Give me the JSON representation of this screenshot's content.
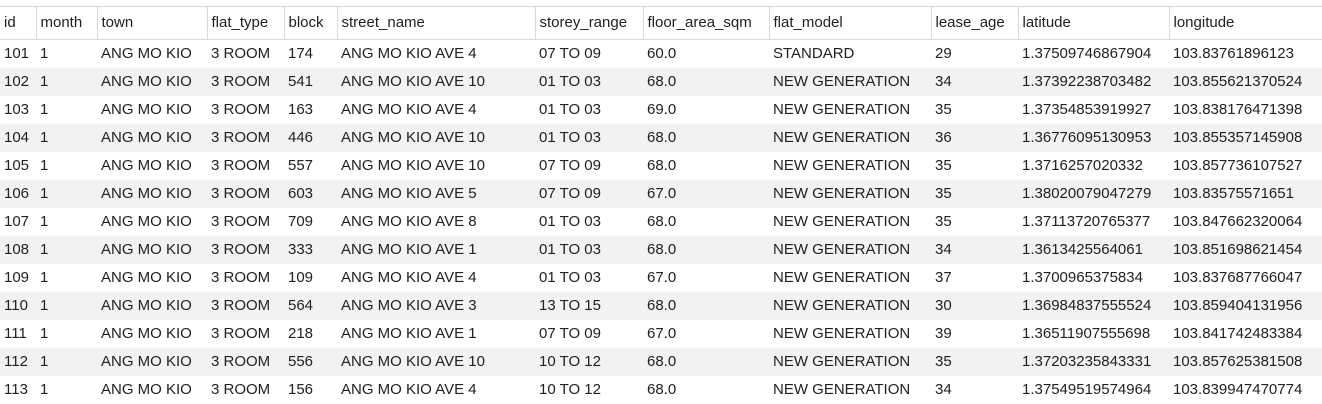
{
  "grid": {
    "columns": [
      "id",
      "month",
      "town",
      "flat_type",
      "block",
      "street_name",
      "storey_range",
      "floor_area_sqm",
      "flat_model",
      "lease_age",
      "latitude",
      "longitude"
    ],
    "rows": [
      [
        "101",
        "1",
        "ANG MO KIO",
        "3 ROOM",
        "174",
        "ANG MO KIO AVE 4",
        "07 TO 09",
        "60.0",
        "STANDARD",
        "29",
        "1.37509746867904",
        "103.83761896123"
      ],
      [
        "102",
        "1",
        "ANG MO KIO",
        "3 ROOM",
        "541",
        "ANG MO KIO AVE 10",
        "01 TO 03",
        "68.0",
        "NEW GENERATION",
        "34",
        "1.37392238703482",
        "103.855621370524"
      ],
      [
        "103",
        "1",
        "ANG MO KIO",
        "3 ROOM",
        "163",
        "ANG MO KIO AVE 4",
        "01 TO 03",
        "69.0",
        "NEW GENERATION",
        "35",
        "1.37354853919927",
        "103.838176471398"
      ],
      [
        "104",
        "1",
        "ANG MO KIO",
        "3 ROOM",
        "446",
        "ANG MO KIO AVE 10",
        "01 TO 03",
        "68.0",
        "NEW GENERATION",
        "36",
        "1.36776095130953",
        "103.855357145908"
      ],
      [
        "105",
        "1",
        "ANG MO KIO",
        "3 ROOM",
        "557",
        "ANG MO KIO AVE 10",
        "07 TO 09",
        "68.0",
        "NEW GENERATION",
        "35",
        "1.3716257020332",
        "103.857736107527"
      ],
      [
        "106",
        "1",
        "ANG MO KIO",
        "3 ROOM",
        "603",
        "ANG MO KIO AVE 5",
        "07 TO 09",
        "67.0",
        "NEW GENERATION",
        "35",
        "1.38020079047279",
        "103.83575571651"
      ],
      [
        "107",
        "1",
        "ANG MO KIO",
        "3 ROOM",
        "709",
        "ANG MO KIO AVE 8",
        "01 TO 03",
        "68.0",
        "NEW GENERATION",
        "35",
        "1.37113720765377",
        "103.847662320064"
      ],
      [
        "108",
        "1",
        "ANG MO KIO",
        "3 ROOM",
        "333",
        "ANG MO KIO AVE 1",
        "01 TO 03",
        "68.0",
        "NEW GENERATION",
        "34",
        "1.3613425564061",
        "103.851698621454"
      ],
      [
        "109",
        "1",
        "ANG MO KIO",
        "3 ROOM",
        "109",
        "ANG MO KIO AVE 4",
        "01 TO 03",
        "67.0",
        "NEW GENERATION",
        "37",
        "1.3700965375834",
        "103.837687766047"
      ],
      [
        "110",
        "1",
        "ANG MO KIO",
        "3 ROOM",
        "564",
        "ANG MO KIO AVE 3",
        "13 TO 15",
        "68.0",
        "NEW GENERATION",
        "30",
        "1.36984837555524",
        "103.859404131956"
      ],
      [
        "111",
        "1",
        "ANG MO KIO",
        "3 ROOM",
        "218",
        "ANG MO KIO AVE 1",
        "07 TO 09",
        "67.0",
        "NEW GENERATION",
        "39",
        "1.36511907555698",
        "103.841742483384"
      ],
      [
        "112",
        "1",
        "ANG MO KIO",
        "3 ROOM",
        "556",
        "ANG MO KIO AVE 10",
        "10 TO 12",
        "68.0",
        "NEW GENERATION",
        "35",
        "1.37203235843331",
        "103.857625381508"
      ],
      [
        "113",
        "1",
        "ANG MO KIO",
        "3 ROOM",
        "156",
        "ANG MO KIO AVE 4",
        "10 TO 12",
        "68.0",
        "NEW GENERATION",
        "34",
        "1.37549519574964",
        "103.839947470774"
      ]
    ]
  },
  "colors": {
    "header_border": "#d9d9d9",
    "row_stripe": "#f2f2f2",
    "text": "#212121"
  }
}
